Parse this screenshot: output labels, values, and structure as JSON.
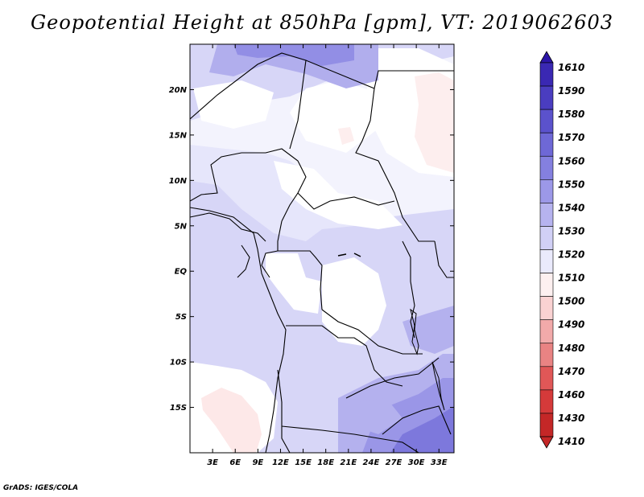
{
  "title": "Geopotential Height at 850hPa [gpm], VT: 2019062603",
  "credit": "GrADS: IGES/COLA",
  "map": {
    "lon_ticks": [
      "3E",
      "6E",
      "9E",
      "12E",
      "15E",
      "18E",
      "21E",
      "24E",
      "27E",
      "30E",
      "33E"
    ],
    "lat_ticks": [
      "20N",
      "15N",
      "10N",
      "5N",
      "EQ",
      "5S",
      "10S",
      "15S"
    ],
    "lon_range": [
      0,
      35
    ],
    "lat_range": [
      -20,
      25
    ]
  },
  "colorbar": {
    "levels": [
      "1610",
      "1590",
      "1580",
      "1570",
      "1560",
      "1550",
      "1540",
      "1530",
      "1520",
      "1510",
      "1500",
      "1490",
      "1480",
      "1470",
      "1460",
      "1430",
      "1410"
    ],
    "colors": [
      "#2c15a8",
      "#3a28b3",
      "#4a3dc0",
      "#5b52cc",
      "#6e68d6",
      "#8480df",
      "#9c98e8",
      "#b6b3ef",
      "#d1d0f6",
      "#eaeafc",
      "#fdf0f0",
      "#fad2d2",
      "#f2aaaa",
      "#e98383",
      "#e05757",
      "#d53a3a",
      "#c42727"
    ]
  }
}
